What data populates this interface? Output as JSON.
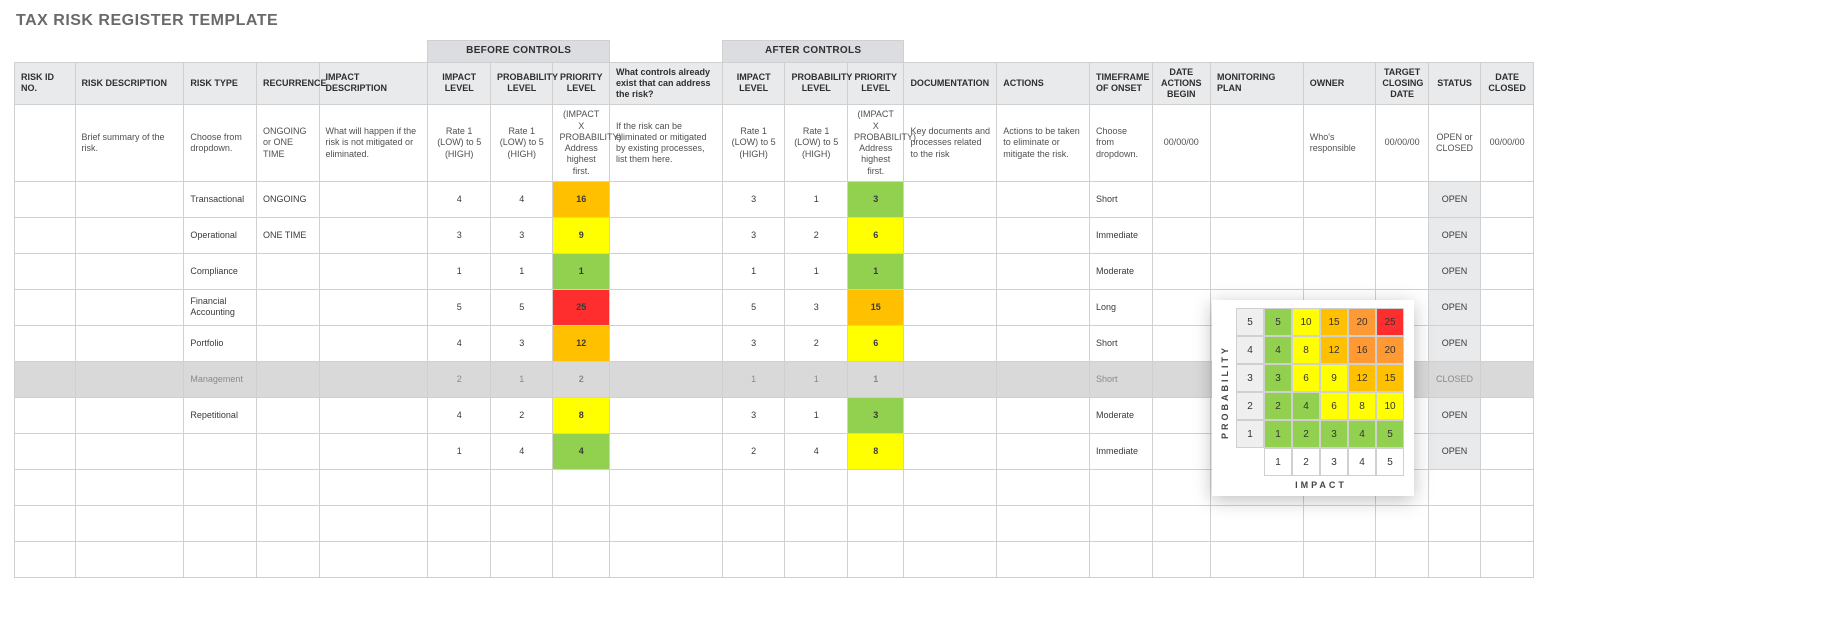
{
  "title": "TAX RISK REGISTER TEMPLATE",
  "groups": {
    "before": "BEFORE CONTROLS",
    "after": "AFTER CONTROLS"
  },
  "columns": [
    {
      "key": "id",
      "label": "RISK ID NO.",
      "hint": "",
      "cls": "c-id"
    },
    {
      "key": "desc",
      "label": "RISK DESCRIPTION",
      "hint": "Brief summary of the risk.",
      "cls": "c-desc"
    },
    {
      "key": "type",
      "label": "RISK TYPE",
      "hint": "Choose from dropdown.",
      "cls": "c-type"
    },
    {
      "key": "rec",
      "label": "RECURRENCE",
      "hint": "ONGOING or ONE TIME",
      "cls": "c-rec"
    },
    {
      "key": "impd",
      "label": "IMPACT DESCRIPTION",
      "hint": "What will happen if the risk is not mitigated or eliminated.",
      "cls": "c-impd"
    },
    {
      "key": "il",
      "label": "IMPACT LEVEL",
      "hint": "Rate\n1 (LOW) to\n5 (HIGH)",
      "cls": "c-il",
      "center": true
    },
    {
      "key": "pl",
      "label": "PROBABILITY LEVEL",
      "hint": "Rate\n1 (LOW) to\n5 (HIGH)",
      "cls": "c-pl",
      "center": true
    },
    {
      "key": "pr",
      "label": "PRIORITY LEVEL",
      "hint": "(IMPACT X PROBABILITY) Address highest first.",
      "cls": "c-pr",
      "center": true
    },
    {
      "key": "ctrl",
      "label": "What controls already exist that can address the risk?",
      "hint": "If the risk can be eliminated or mitigated by existing processes, list them here.",
      "cls": "c-ctrl"
    },
    {
      "key": "il2",
      "label": "IMPACT LEVEL",
      "hint": "Rate\n1 (LOW) to\n5 (HIGH)",
      "cls": "c-il2",
      "center": true
    },
    {
      "key": "pl2",
      "label": "PROBABILITY LEVEL",
      "hint": "Rate\n1 (LOW) to\n5 (HIGH)",
      "cls": "c-pl2",
      "center": true
    },
    {
      "key": "pr2",
      "label": "PRIORITY LEVEL",
      "hint": "(IMPACT X PROBABILITY) Address highest first.",
      "cls": "c-pr2",
      "center": true
    },
    {
      "key": "doc",
      "label": "DOCUMENTATION",
      "hint": "Key documents and processes related to the risk",
      "cls": "c-doc"
    },
    {
      "key": "act",
      "label": "ACTIONS",
      "hint": "Actions to be taken to eliminate or mitigate the risk.",
      "cls": "c-act"
    },
    {
      "key": "tf",
      "label": "TIMEFRAME OF ONSET",
      "hint": "Choose from dropdown.",
      "cls": "c-tf"
    },
    {
      "key": "dab",
      "label": "DATE ACTIONS BEGIN",
      "hint": "00/00/00",
      "cls": "c-dab",
      "center": true
    },
    {
      "key": "mon",
      "label": "MONITORING PLAN",
      "hint": "",
      "cls": "c-mon"
    },
    {
      "key": "own",
      "label": "OWNER",
      "hint": "Who's responsible",
      "cls": "c-own"
    },
    {
      "key": "tcd",
      "label": "TARGET CLOSING DATE",
      "hint": "00/00/00",
      "cls": "c-tcd",
      "center": true
    },
    {
      "key": "stat",
      "label": "STATUS",
      "hint": "OPEN or CLOSED",
      "cls": "c-stat",
      "center": true
    },
    {
      "key": "dc",
      "label": "DATE CLOSED",
      "hint": "00/00/00",
      "cls": "c-dc",
      "center": true
    }
  ],
  "rows": [
    {
      "type": "Transactional",
      "rec": "ONGOING",
      "il": 4,
      "pl": 4,
      "pr": 16,
      "il2": 3,
      "pl2": 1,
      "pr2": 3,
      "tf": "Short",
      "stat": "OPEN"
    },
    {
      "type": "Operational",
      "rec": "ONE TIME",
      "il": 3,
      "pl": 3,
      "pr": 9,
      "il2": 3,
      "pl2": 2,
      "pr2": 6,
      "tf": "Immediate",
      "stat": "OPEN"
    },
    {
      "type": "Compliance",
      "rec": "",
      "il": 1,
      "pl": 1,
      "pr": 1,
      "il2": 1,
      "pl2": 1,
      "pr2": 1,
      "tf": "Moderate",
      "stat": "OPEN"
    },
    {
      "type": "Financial Accounting",
      "rec": "",
      "il": 5,
      "pl": 5,
      "pr": 25,
      "il2": 5,
      "pl2": 3,
      "pr2": 15,
      "tf": "Long",
      "stat": "OPEN"
    },
    {
      "type": "Portfolio",
      "rec": "",
      "il": 4,
      "pl": 3,
      "pr": 12,
      "il2": 3,
      "pl2": 2,
      "pr2": 6,
      "tf": "Short",
      "stat": "OPEN"
    },
    {
      "type": "Management",
      "rec": "",
      "il": 2,
      "pl": 1,
      "pr": 2,
      "il2": 1,
      "pl2": 1,
      "pr2": 1,
      "tf": "Short",
      "stat": "CLOSED",
      "closed": true
    },
    {
      "type": "Repetitional",
      "rec": "",
      "il": 4,
      "pl": 2,
      "pr": 8,
      "il2": 3,
      "pl2": 1,
      "pr2": 3,
      "tf": "Moderate",
      "stat": "OPEN"
    },
    {
      "type": "",
      "rec": "",
      "il": 1,
      "pl": 4,
      "pr": 4,
      "il2": 2,
      "pl2": 4,
      "pr2": 8,
      "tf": "Immediate",
      "stat": "OPEN"
    },
    {
      "blank": true
    },
    {
      "blank": true
    },
    {
      "blank": true
    }
  ],
  "priority_colors": {
    "scale": [
      {
        "max": 4,
        "bg": "#92d050"
      },
      {
        "max": 10,
        "bg": "#ffff00"
      },
      {
        "max": 16,
        "bg": "#ffc000"
      },
      {
        "max": 20,
        "bg": "#ff9933"
      },
      {
        "max": 99,
        "bg": "#ff2e2e"
      }
    ],
    "override": {
      "2": "#e9eaec",
      "3": "#92d050",
      "15": "#ffc000",
      "16": "#ffc000"
    }
  },
  "matrix": {
    "ylabel": "PROBABILITY",
    "xlabel": "IMPACT",
    "rows": [
      {
        "h": 5,
        "cells": [
          {
            "v": 5,
            "bg": "#92d050"
          },
          {
            "v": 10,
            "bg": "#ffff00"
          },
          {
            "v": 15,
            "bg": "#ffc000"
          },
          {
            "v": 20,
            "bg": "#ff9933"
          },
          {
            "v": 25,
            "bg": "#ff2e2e"
          }
        ]
      },
      {
        "h": 4,
        "cells": [
          {
            "v": 4,
            "bg": "#92d050"
          },
          {
            "v": 8,
            "bg": "#ffff00"
          },
          {
            "v": 12,
            "bg": "#ffc000"
          },
          {
            "v": 16,
            "bg": "#ff9933"
          },
          {
            "v": 20,
            "bg": "#ff9933"
          }
        ]
      },
      {
        "h": 3,
        "cells": [
          {
            "v": 3,
            "bg": "#92d050"
          },
          {
            "v": 6,
            "bg": "#ffff00"
          },
          {
            "v": 9,
            "bg": "#ffff00"
          },
          {
            "v": 12,
            "bg": "#ffc000"
          },
          {
            "v": 15,
            "bg": "#ffc000"
          }
        ]
      },
      {
        "h": 2,
        "cells": [
          {
            "v": 2,
            "bg": "#92d050"
          },
          {
            "v": 4,
            "bg": "#92d050"
          },
          {
            "v": 6,
            "bg": "#ffff00"
          },
          {
            "v": 8,
            "bg": "#ffff00"
          },
          {
            "v": 10,
            "bg": "#ffff00"
          }
        ]
      },
      {
        "h": 1,
        "cells": [
          {
            "v": 1,
            "bg": "#92d050"
          },
          {
            "v": 2,
            "bg": "#92d050"
          },
          {
            "v": 3,
            "bg": "#92d050"
          },
          {
            "v": 4,
            "bg": "#92d050"
          },
          {
            "v": 5,
            "bg": "#92d050"
          }
        ]
      }
    ],
    "xheaders": [
      1,
      2,
      3,
      4,
      5
    ]
  }
}
